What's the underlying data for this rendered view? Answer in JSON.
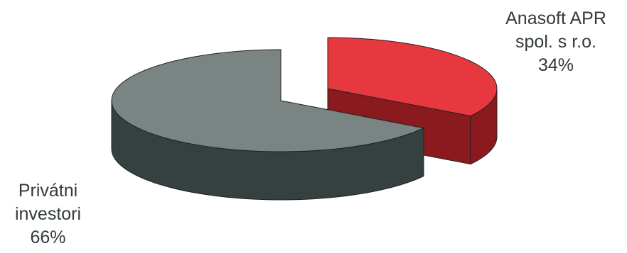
{
  "chart_data": {
    "type": "pie",
    "style": "3d-exploded",
    "slices": [
      {
        "label_lines": [
          "Anasoft APR",
          "spol. s r.o.",
          "34%"
        ],
        "value": 34,
        "top_color": "#e8383f",
        "side_color": "#8a1a1d",
        "exploded": true
      },
      {
        "label_lines": [
          "Privátni",
          "investori",
          "66%"
        ],
        "value": 66,
        "top_color": "#7a8483",
        "side_color": "#344140",
        "exploded": false
      }
    ]
  }
}
